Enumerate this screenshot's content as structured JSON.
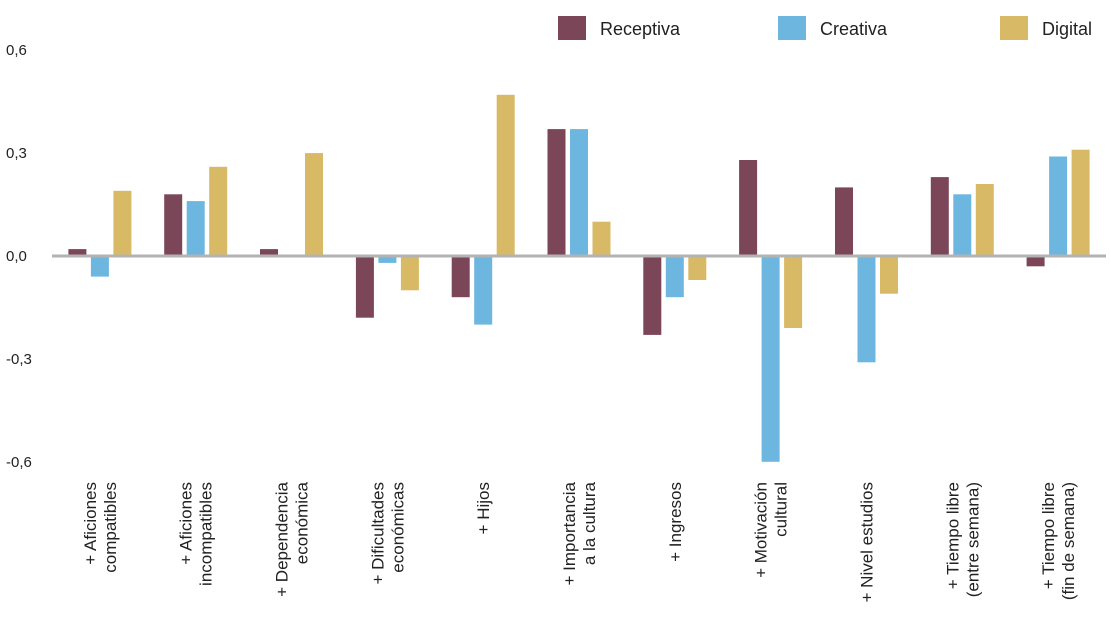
{
  "chart_data": {
    "type": "bar",
    "categories": [
      [
        "+ Aficiones",
        "compatibles"
      ],
      [
        "+ Aficiones",
        "incompatibles"
      ],
      [
        "+ Dependencia",
        "económica"
      ],
      [
        "+ Dificultades",
        "económicas"
      ],
      [
        "+ Hijos"
      ],
      [
        "+ Importancia",
        "a la cultura"
      ],
      [
        "+ Ingresos"
      ],
      [
        "+ Motivación",
        "cultural"
      ],
      [
        "+ Nivel estudios"
      ],
      [
        "+ Tiempo libre",
        "(entre semana)"
      ],
      [
        "+ Tiempo libre",
        "(fin de semana)"
      ]
    ],
    "series": [
      {
        "name": "Receptiva",
        "color": "#7b4658",
        "values": [
          0.02,
          0.18,
          0.02,
          -0.18,
          -0.12,
          0.37,
          -0.23,
          0.28,
          0.2,
          0.23,
          -0.03
        ]
      },
      {
        "name": "Creativa",
        "color": "#6cb6e0",
        "values": [
          -0.06,
          0.16,
          0.0,
          -0.02,
          -0.2,
          0.37,
          -0.12,
          -0.6,
          -0.31,
          0.18,
          0.29
        ]
      },
      {
        "name": "Digital",
        "color": "#d8b966",
        "values": [
          0.19,
          0.26,
          0.3,
          -0.1,
          0.47,
          0.1,
          -0.07,
          -0.21,
          -0.11,
          0.21,
          0.31
        ]
      }
    ],
    "yticks": [
      "0,6",
      "0,3",
      "0,0",
      "-0,3",
      "-0,6"
    ],
    "ytick_values": [
      0.6,
      0.3,
      0.0,
      -0.3,
      -0.6
    ],
    "ylim": [
      -0.6,
      0.6
    ],
    "grid": false,
    "legend_position": "top-right",
    "zero_line_color": "#b3b3b3"
  }
}
